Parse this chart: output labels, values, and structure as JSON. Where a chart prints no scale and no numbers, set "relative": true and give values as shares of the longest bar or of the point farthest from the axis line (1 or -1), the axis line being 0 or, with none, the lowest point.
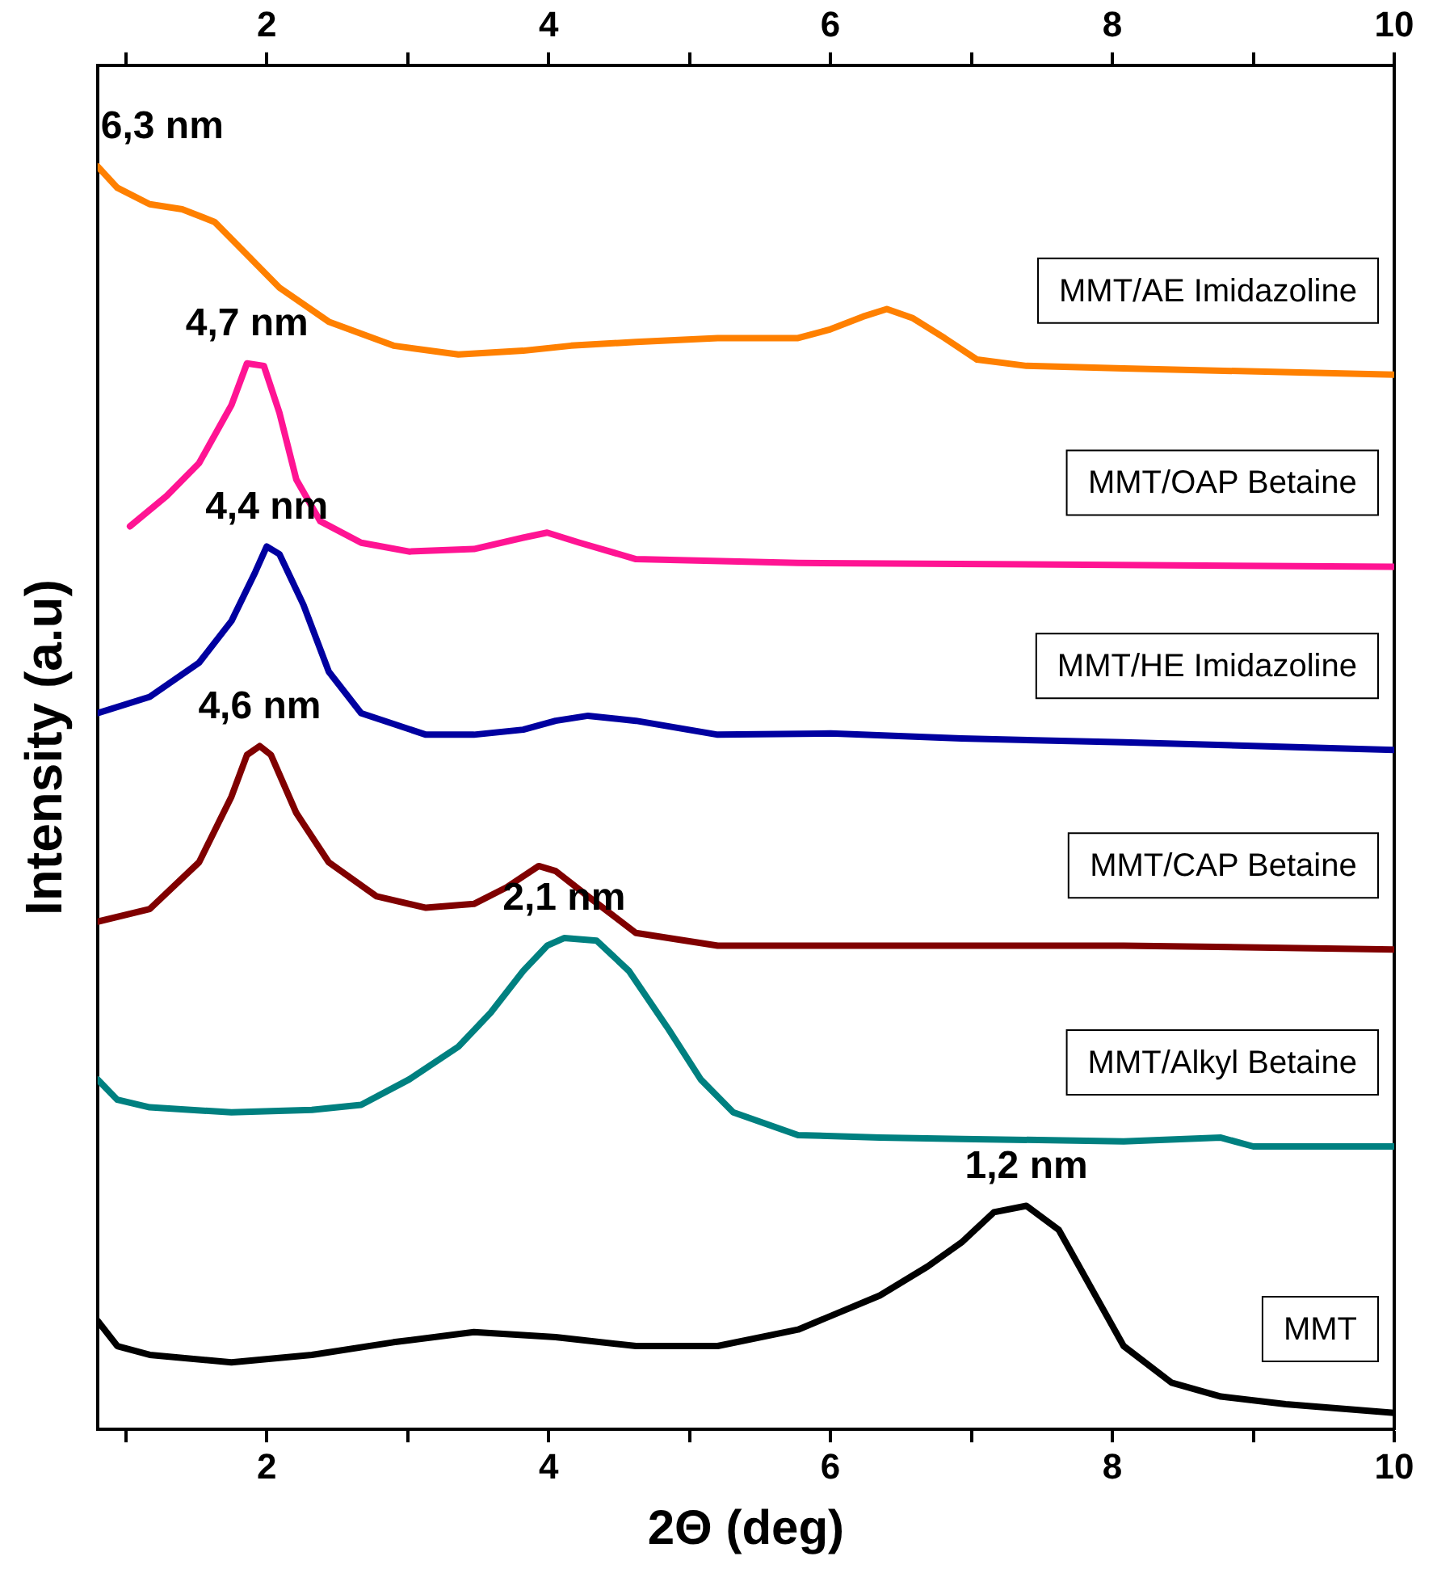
{
  "chart_data": {
    "type": "line",
    "relative": true,
    "xlabel": "2Θ (deg)",
    "ylabel": "Intensity (a.u)",
    "xlim": [
      0.8,
      10
    ],
    "xticks": [
      {
        "value": 1,
        "label": null
      },
      2,
      {
        "value": 3,
        "label": null
      },
      4,
      {
        "value": 5,
        "label": null
      },
      6,
      {
        "value": 7,
        "label": null
      },
      8,
      {
        "value": 9,
        "label": null
      },
      10
    ],
    "x2lim": [
      0.8,
      10
    ],
    "x2ticks": [
      {
        "value": 1,
        "label": null
      },
      2,
      {
        "value": 3,
        "label": null
      },
      4,
      {
        "value": 5,
        "label": null
      },
      6,
      {
        "value": 7,
        "label": null
      },
      8,
      {
        "value": 9,
        "label": null
      },
      10
    ],
    "grid": false,
    "legend": false,
    "series": [
      {
        "name": "MMT/AE Imidazoline",
        "color": "#ff8000",
        "x": [
          0.8,
          0.94,
          1.17,
          1.4,
          1.63,
          1.86,
          2.09,
          2.44,
          2.9,
          3.36,
          3.82,
          4.16,
          4.62,
          5.2,
          5.77,
          6.0,
          6.23,
          6.4,
          6.58,
          6.81,
          7.04,
          7.39,
          8.08,
          10
        ],
        "values": [
          1.0,
          0.983,
          0.97,
          0.966,
          0.956,
          0.93,
          0.904,
          0.877,
          0.858,
          0.851,
          0.854,
          0.858,
          0.861,
          0.864,
          0.864,
          0.871,
          0.881,
          0.887,
          0.88,
          0.864,
          0.847,
          0.842,
          0.84,
          0.835
        ]
      },
      {
        "name": "MMT/OAP Betaine",
        "color": "#ff1493",
        "x": [
          1.03,
          1.29,
          1.52,
          1.75,
          1.86,
          1.98,
          2.09,
          2.21,
          2.38,
          2.67,
          3.01,
          3.47,
          3.82,
          3.99,
          4.22,
          4.62,
          5.77,
          10
        ],
        "values": [
          0.715,
          0.739,
          0.765,
          0.811,
          0.844,
          0.842,
          0.805,
          0.752,
          0.719,
          0.702,
          0.695,
          0.697,
          0.706,
          0.71,
          0.702,
          0.689,
          0.686,
          0.683
        ]
      },
      {
        "name": "MMT/HE Imidazoline",
        "color": "#0000a0",
        "x": [
          0.8,
          1.17,
          1.52,
          1.75,
          1.92,
          2.0,
          2.09,
          2.26,
          2.44,
          2.67,
          3.13,
          3.47,
          3.82,
          4.05,
          4.28,
          4.62,
          5.2,
          6.0,
          6.93,
          8.08,
          10
        ],
        "values": [
          0.567,
          0.58,
          0.607,
          0.64,
          0.679,
          0.699,
          0.693,
          0.653,
          0.6,
          0.567,
          0.55,
          0.55,
          0.554,
          0.561,
          0.565,
          0.561,
          0.55,
          0.551,
          0.547,
          0.544,
          0.538
        ]
      },
      {
        "name": "MMT/CAP Betaine",
        "color": "#800000",
        "x": [
          0.8,
          1.17,
          1.52,
          1.75,
          1.86,
          1.95,
          2.03,
          2.21,
          2.44,
          2.78,
          3.13,
          3.47,
          3.7,
          3.93,
          4.05,
          4.28,
          4.62,
          5.2,
          6.35,
          8.08,
          10
        ],
        "values": [
          0.402,
          0.412,
          0.449,
          0.501,
          0.534,
          0.541,
          0.534,
          0.488,
          0.449,
          0.422,
          0.413,
          0.416,
          0.429,
          0.446,
          0.442,
          0.422,
          0.393,
          0.383,
          0.383,
          0.383,
          0.38
        ]
      },
      {
        "name": "MMT/Alkyl Betaine",
        "color": "#008080",
        "x": [
          0.8,
          0.94,
          1.17,
          1.75,
          2.32,
          2.67,
          3.01,
          3.36,
          3.59,
          3.82,
          3.99,
          4.11,
          4.34,
          4.57,
          4.85,
          5.08,
          5.31,
          5.77,
          6.35,
          6.93,
          8.08,
          8.77,
          9.0,
          10
        ],
        "values": [
          0.277,
          0.261,
          0.255,
          0.251,
          0.253,
          0.257,
          0.277,
          0.303,
          0.33,
          0.363,
          0.383,
          0.389,
          0.387,
          0.363,
          0.317,
          0.277,
          0.251,
          0.233,
          0.231,
          0.23,
          0.228,
          0.231,
          0.224,
          0.224
        ]
      },
      {
        "name": "MMT",
        "color": "#000000",
        "x": [
          0.8,
          0.94,
          1.17,
          1.75,
          2.32,
          2.9,
          3.47,
          4.05,
          4.62,
          5.2,
          5.77,
          6.35,
          6.69,
          6.93,
          7.16,
          7.39,
          7.62,
          7.85,
          8.08,
          8.42,
          8.77,
          9.23,
          10
        ],
        "values": [
          0.086,
          0.066,
          0.059,
          0.053,
          0.059,
          0.069,
          0.077,
          0.073,
          0.066,
          0.066,
          0.079,
          0.106,
          0.129,
          0.148,
          0.172,
          0.177,
          0.158,
          0.112,
          0.066,
          0.037,
          0.026,
          0.02,
          0.013
        ]
      }
    ],
    "annotations": [
      "6,3 nm",
      "4,7 nm",
      "4,4 nm",
      "4,6 nm",
      "2,1 nm",
      "1,2 nm"
    ]
  }
}
